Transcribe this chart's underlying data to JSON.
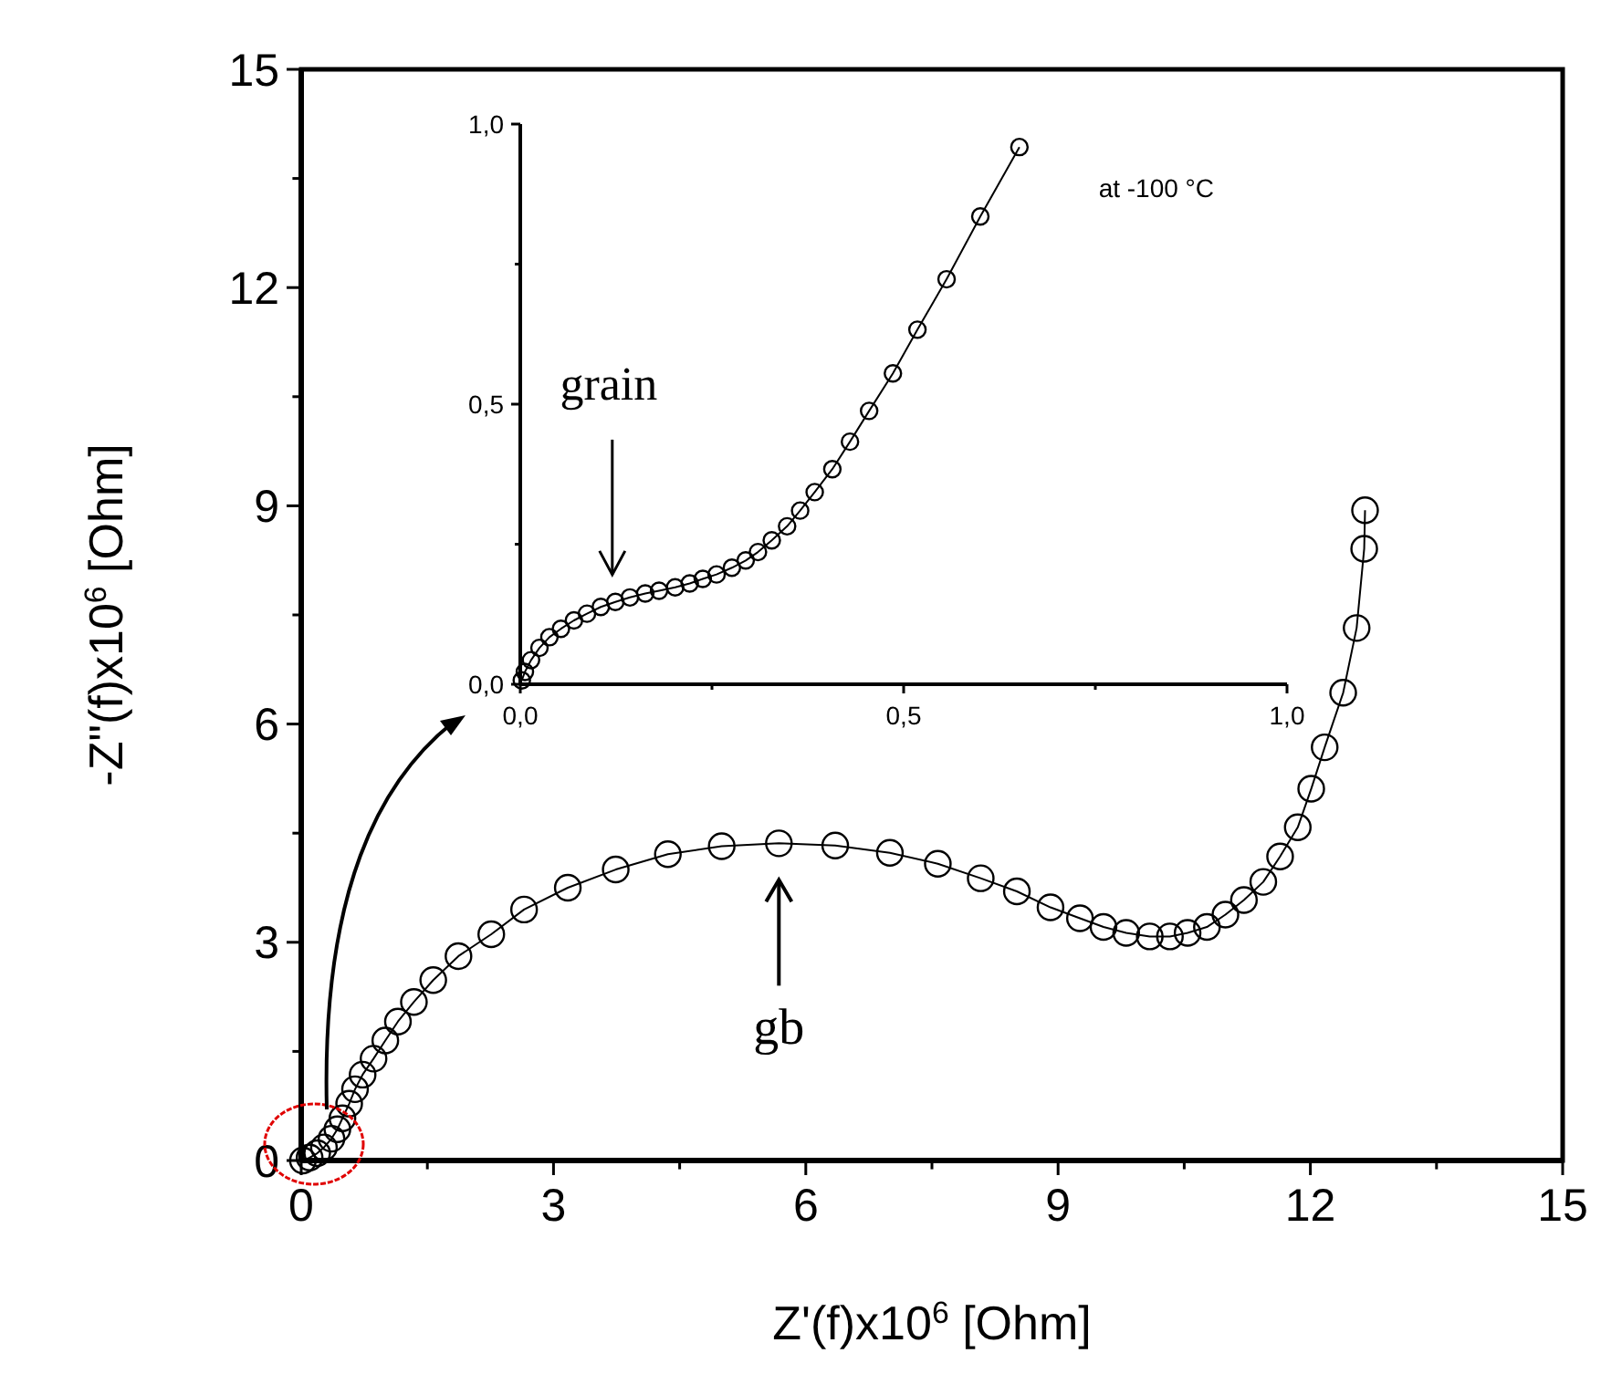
{
  "chart_data": [
    {
      "type": "line",
      "marker": "circle",
      "line_style": "solid",
      "xlabel": "Z'(f)x10$^{6}$ [Ohm]",
      "ylabel": "-Z\"(f)x10$^{6}$ [Ohm]",
      "xlim": [
        0,
        15
      ],
      "ylim": [
        0,
        15
      ],
      "xticks": [
        0,
        {
          "value": 1.5,
          "label": null
        },
        3,
        {
          "value": 4.5,
          "label": null
        },
        6,
        {
          "value": 7.5,
          "label": null
        },
        9,
        {
          "value": 10.5,
          "label": null
        },
        12,
        {
          "value": 13.5,
          "label": null
        },
        15
      ],
      "yticks": [
        0,
        {
          "value": 1.5,
          "label": null
        },
        3,
        {
          "value": 4.5,
          "label": null
        },
        6,
        {
          "value": 7.5,
          "label": null
        },
        9,
        {
          "value": 10.5,
          "label": null
        },
        12,
        {
          "value": 13.5,
          "label": null
        },
        15
      ],
      "annotations": [
        "gb"
      ],
      "series": [
        {
          "color": "#000000",
          "x": [
            0.02,
            0.1,
            0.19,
            0.27,
            0.36,
            0.43,
            0.49,
            0.57,
            0.64,
            0.73,
            0.86,
            1.0,
            1.15,
            1.34,
            1.57,
            1.87,
            2.26,
            2.65,
            3.17,
            3.74,
            4.36,
            5.0,
            5.68,
            6.35,
            7.0,
            7.57,
            8.08,
            8.51,
            8.91,
            9.26,
            9.54,
            9.81,
            10.09,
            10.33,
            10.54,
            10.77,
            10.99,
            11.21,
            11.44,
            11.64,
            11.85,
            12.01,
            12.17,
            12.39,
            12.55,
            12.64,
            12.65
          ],
          "values": [
            0.0,
            0.04,
            0.1,
            0.18,
            0.3,
            0.43,
            0.58,
            0.78,
            0.98,
            1.18,
            1.4,
            1.65,
            1.91,
            2.18,
            2.48,
            2.81,
            3.11,
            3.45,
            3.75,
            4.0,
            4.21,
            4.32,
            4.36,
            4.33,
            4.23,
            4.08,
            3.88,
            3.7,
            3.48,
            3.33,
            3.21,
            3.13,
            3.08,
            3.08,
            3.13,
            3.21,
            3.38,
            3.58,
            3.83,
            4.18,
            4.58,
            5.11,
            5.68,
            6.43,
            7.32,
            8.41,
            8.94
          ]
        }
      ]
    },
    {
      "type": "line",
      "marker": "circle",
      "line_style": "solid",
      "xlim": [
        0,
        1
      ],
      "ylim": [
        0,
        1
      ],
      "xticks": [
        {
          "value": 0,
          "label": "0,0"
        },
        {
          "value": 0.25,
          "label": null
        },
        {
          "value": 0.5,
          "label": "0,5"
        },
        {
          "value": 0.75,
          "label": null
        },
        {
          "value": 1,
          "label": "1,0"
        }
      ],
      "yticks": [
        {
          "value": 0,
          "label": "0,0"
        },
        {
          "value": 0.25,
          "label": null
        },
        {
          "value": 0.5,
          "label": "0,5"
        },
        {
          "value": 0.75,
          "label": null
        },
        {
          "value": 1,
          "label": "1,0"
        }
      ],
      "annotations": [
        "grain",
        "at -100 °C"
      ],
      "series": [
        {
          "color": "#000000",
          "x": [
            0.002,
            0.006,
            0.014,
            0.025,
            0.038,
            0.053,
            0.07,
            0.087,
            0.105,
            0.124,
            0.143,
            0.163,
            0.181,
            0.202,
            0.221,
            0.238,
            0.256,
            0.276,
            0.294,
            0.31,
            0.328,
            0.348,
            0.365,
            0.384,
            0.407,
            0.43,
            0.455,
            0.486,
            0.518,
            0.556,
            0.6,
            0.651
          ],
          "values": [
            0.007,
            0.022,
            0.043,
            0.065,
            0.084,
            0.099,
            0.114,
            0.126,
            0.138,
            0.147,
            0.155,
            0.162,
            0.167,
            0.173,
            0.18,
            0.188,
            0.196,
            0.208,
            0.221,
            0.236,
            0.257,
            0.282,
            0.31,
            0.343,
            0.384,
            0.433,
            0.488,
            0.555,
            0.633,
            0.723,
            0.835,
            0.959
          ]
        }
      ]
    }
  ]
}
